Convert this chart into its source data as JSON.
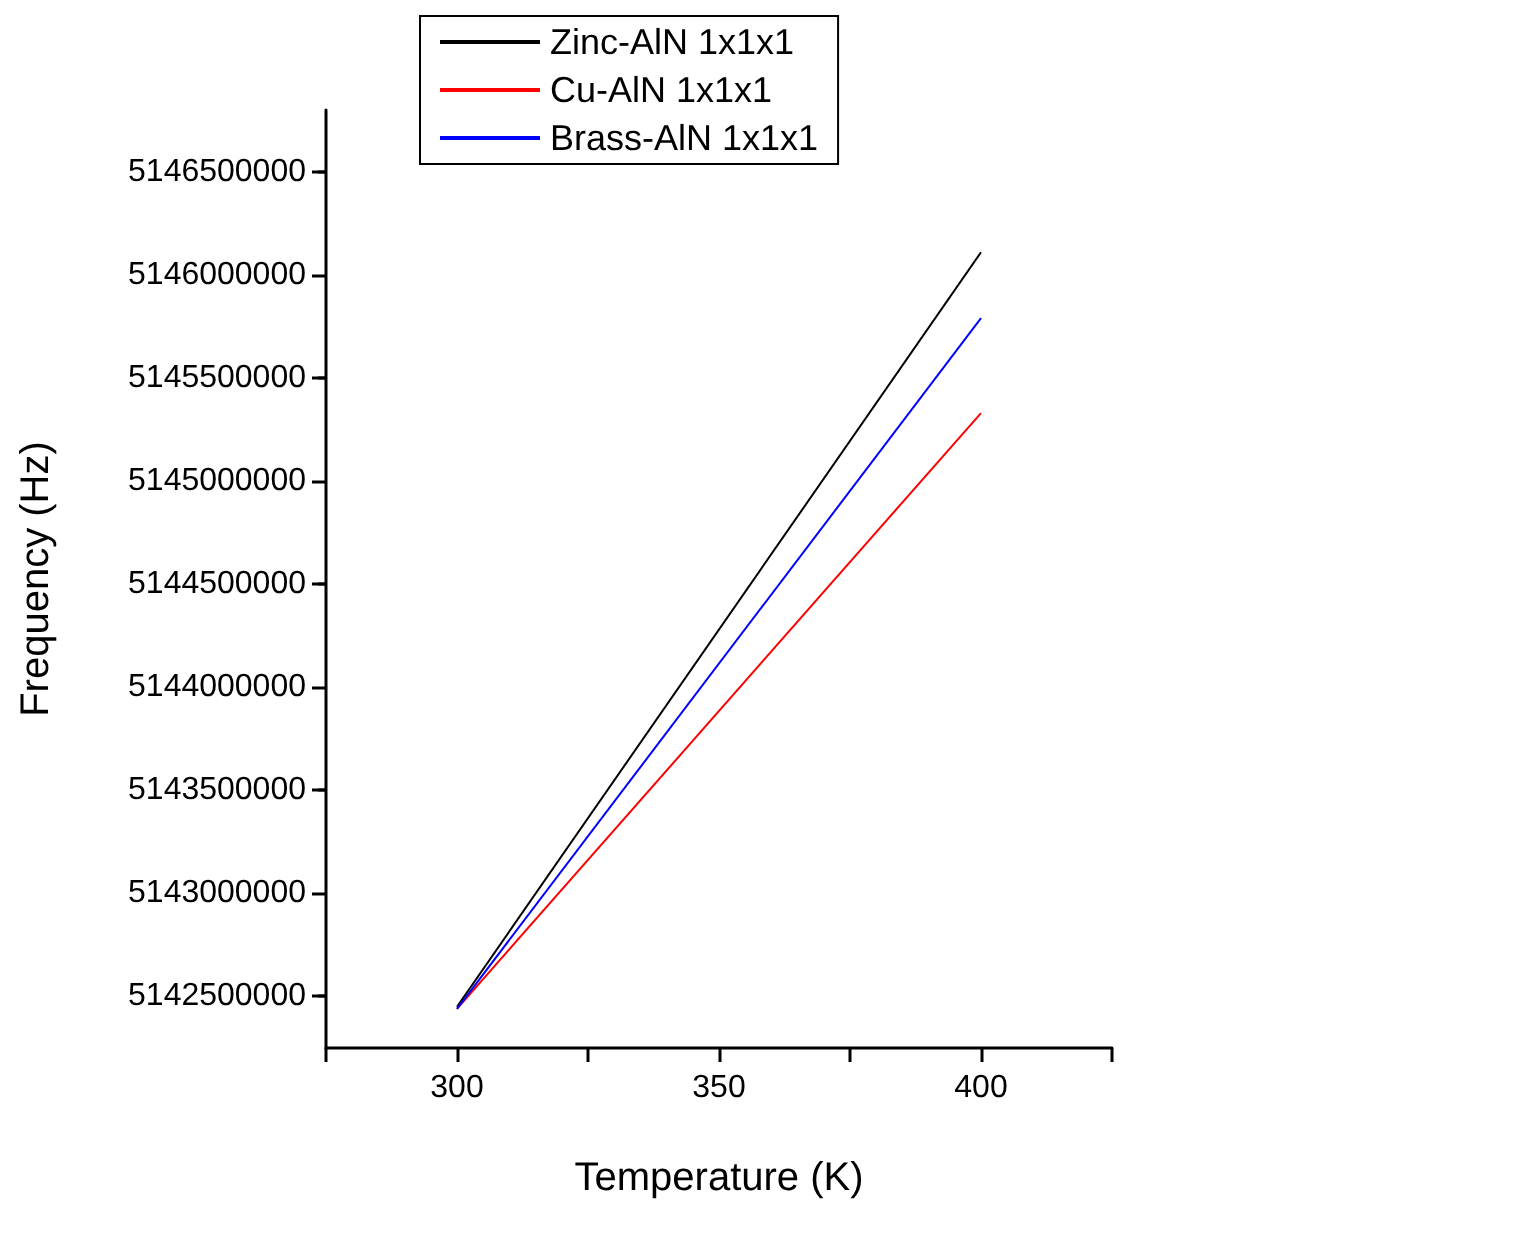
{
  "chart_data": {
    "type": "line",
    "xlabel": "Temperature (K)",
    "ylabel": "Frequency (Hz)",
    "xlim": [
      275,
      425
    ],
    "xticks": [
      {
        "value": 275,
        "label": null
      },
      300,
      {
        "value": 325,
        "label": null
      },
      350,
      {
        "value": 375,
        "label": null
      },
      400,
      {
        "value": 425,
        "label": null
      }
    ],
    "ylim": [
      5142250000,
      5146800000
    ],
    "yticks": [
      5142500000,
      5143000000,
      5143500000,
      5144000000,
      5144500000,
      5145000000,
      5145500000,
      5146000000,
      5146500000
    ],
    "x": [
      300,
      400
    ],
    "series": [
      {
        "name": "Zinc-AlN 1x1x1",
        "color": "#000000",
        "values": [
          5142450000,
          5146110000
        ]
      },
      {
        "name": "Cu-AlN 1x1x1",
        "color": "#ff0000",
        "values": [
          5142440000,
          5145330000
        ]
      },
      {
        "name": "Brass-AlN 1x1x1",
        "color": "#0000ff",
        "values": [
          5142440000,
          5145790000
        ]
      }
    ],
    "legend": "top",
    "grid": false,
    "marker": "none",
    "line_style": "solid"
  }
}
